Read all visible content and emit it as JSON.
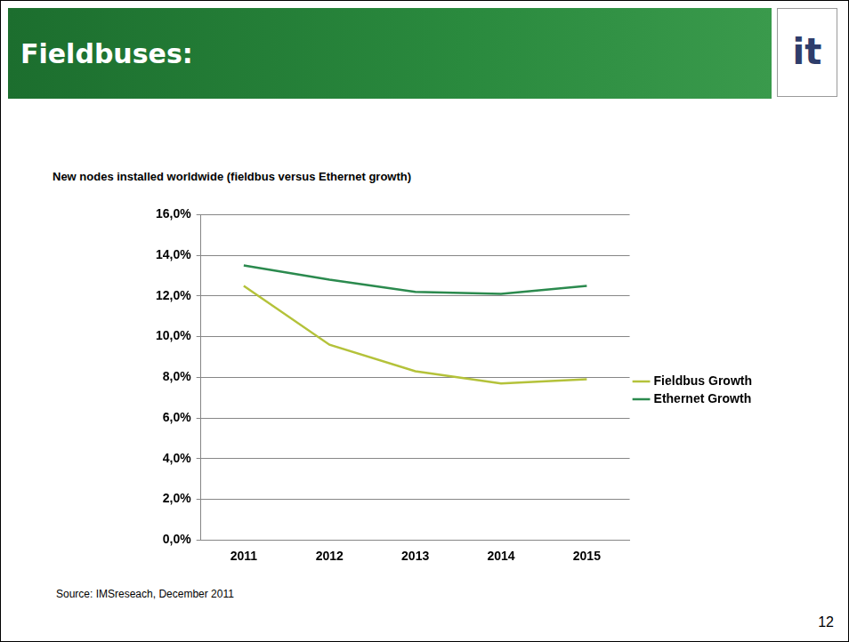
{
  "slide": {
    "title": "Fieldbuses:",
    "logo": "it",
    "source": "Source: IMSreseach, December 2011",
    "page_number": "12"
  },
  "chart_data": {
    "type": "line",
    "title": "New nodes installed worldwide (fieldbus versus Ethernet growth)",
    "categories": [
      "2011",
      "2012",
      "2013",
      "2014",
      "2015"
    ],
    "series": [
      {
        "name": "Fieldbus Growth",
        "color": "#b4c23a",
        "values": [
          12.5,
          9.6,
          8.3,
          7.7,
          7.9
        ]
      },
      {
        "name": "Ethernet Growth",
        "color": "#2b8a4e",
        "values": [
          13.5,
          12.8,
          12.2,
          12.1,
          12.5
        ]
      }
    ],
    "ylim": [
      0,
      16
    ],
    "yticks": [
      {
        "value": 0,
        "label": "0,0%"
      },
      {
        "value": 2,
        "label": "2,0%"
      },
      {
        "value": 4,
        "label": "4,0%"
      },
      {
        "value": 6,
        "label": "6,0%"
      },
      {
        "value": 8,
        "label": "8,0%"
      },
      {
        "value": 10,
        "label": "10,0%"
      },
      {
        "value": 12,
        "label": "12,0%"
      },
      {
        "value": 14,
        "label": "14,0%"
      },
      {
        "value": 16,
        "label": "16,0%"
      }
    ],
    "grid": true,
    "legend": "right"
  }
}
